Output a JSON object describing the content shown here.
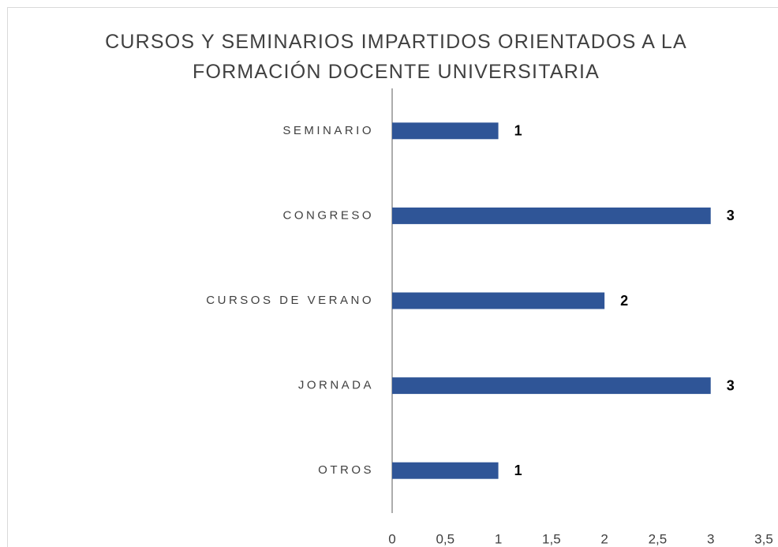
{
  "chart_data": {
    "type": "barh",
    "title": "CURSOS Y SEMINARIOS IMPARTIDOS ORIENTADOS A LA FORMACIÓN DOCENTE UNIVERSITARIA",
    "categories": [
      "SEMINARIO",
      "CONGRESO",
      "CURSOS DE VERANO",
      "JORNADA",
      "OTROS"
    ],
    "values": [
      1,
      3,
      2,
      3,
      1
    ],
    "color": "#2f5597",
    "xlim": [
      0,
      3.5
    ],
    "xticks": [
      0,
      {
        "value": 0.5,
        "label": "0,5"
      },
      1,
      {
        "value": 1.5,
        "label": "1,5"
      },
      2,
      {
        "value": 2.5,
        "label": "2,5"
      },
      3,
      {
        "value": 3.5,
        "label": "3,5"
      }
    ],
    "grid": false
  }
}
